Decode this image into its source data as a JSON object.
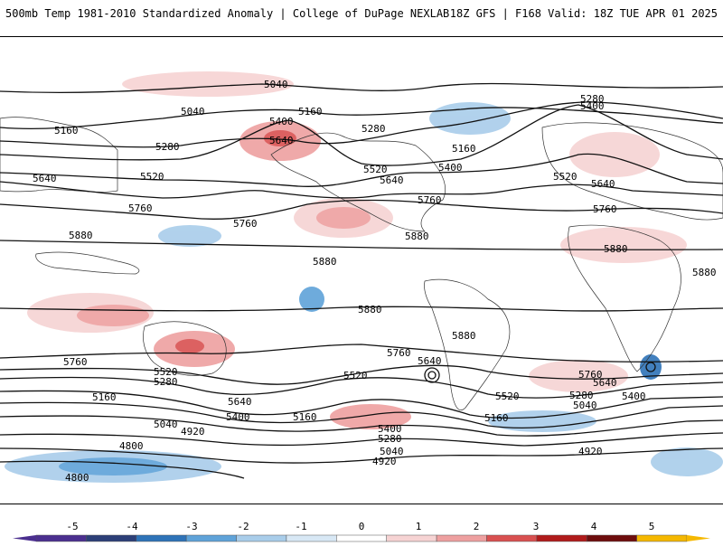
{
  "header": {
    "title_left": "500mb Temp 1981-2010 Standardized Anomaly | College of DuPage NEXLAB",
    "title_right": "18Z GFS | F168 Valid: 18Z TUE APR 01 2025"
  },
  "colorbar": {
    "ticks": [
      "-5",
      "-4",
      "-3",
      "-2",
      "-1",
      "0",
      "1",
      "2",
      "3",
      "4",
      "5"
    ],
    "colors": [
      "#4b2f8f",
      "#2c3f78",
      "#2e73b8",
      "#5fa3d9",
      "#a9cdea",
      "#d8e8f5",
      "#ffffff",
      "#f6d3d3",
      "#eea0a0",
      "#d95050",
      "#b01b1b",
      "#6e0d0d",
      "#f5b800"
    ]
  },
  "map": {
    "contour_labels": [
      {
        "id": "a",
        "text": "5040"
      },
      {
        "id": "b",
        "text": "5040"
      },
      {
        "id": "c",
        "text": "5160"
      },
      {
        "id": "d",
        "text": "5160"
      },
      {
        "id": "e",
        "text": "5400"
      },
      {
        "id": "f",
        "text": "5640"
      },
      {
        "id": "g",
        "text": "5280"
      },
      {
        "id": "h",
        "text": "5280"
      },
      {
        "id": "i",
        "text": "5160"
      },
      {
        "id": "j",
        "text": "5520"
      },
      {
        "id": "k",
        "text": "5400"
      },
      {
        "id": "l",
        "text": "5640"
      },
      {
        "id": "m",
        "text": "5640"
      },
      {
        "id": "n",
        "text": "5520"
      },
      {
        "id": "o",
        "text": "5760"
      },
      {
        "id": "p",
        "text": "5760"
      },
      {
        "id": "q",
        "text": "5760"
      },
      {
        "id": "r",
        "text": "5280"
      },
      {
        "id": "s",
        "text": "5400"
      },
      {
        "id": "t",
        "text": "5520"
      },
      {
        "id": "u",
        "text": "5640"
      },
      {
        "id": "v",
        "text": "5760"
      },
      {
        "id": "w",
        "text": "5880"
      },
      {
        "id": "x",
        "text": "5880"
      },
      {
        "id": "y",
        "text": "5880"
      },
      {
        "id": "z",
        "text": "5880"
      },
      {
        "id": "aa",
        "text": "5880"
      },
      {
        "id": "ab",
        "text": "5880"
      },
      {
        "id": "ac",
        "text": "5880"
      },
      {
        "id": "ad",
        "text": "5760"
      },
      {
        "id": "ae",
        "text": "5520"
      },
      {
        "id": "af",
        "text": "5280"
      },
      {
        "id": "ag",
        "text": "5160"
      },
      {
        "id": "ah",
        "text": "5040"
      },
      {
        "id": "ai",
        "text": "4920"
      },
      {
        "id": "aj",
        "text": "4800"
      },
      {
        "id": "ak",
        "text": "4800"
      },
      {
        "id": "al",
        "text": "5760"
      },
      {
        "id": "am",
        "text": "5640"
      },
      {
        "id": "an",
        "text": "5400"
      },
      {
        "id": "ao",
        "text": "5160"
      },
      {
        "id": "ap",
        "text": "5520"
      },
      {
        "id": "aq",
        "text": "5400"
      },
      {
        "id": "ar",
        "text": "5280"
      },
      {
        "id": "as",
        "text": "5040"
      },
      {
        "id": "at",
        "text": "4920"
      },
      {
        "id": "au",
        "text": "5760"
      },
      {
        "id": "av",
        "text": "5640"
      },
      {
        "id": "aw",
        "text": "5160"
      },
      {
        "id": "ax",
        "text": "5520"
      },
      {
        "id": "ay",
        "text": "5280"
      },
      {
        "id": "az",
        "text": "5400"
      },
      {
        "id": "ba",
        "text": "5040"
      },
      {
        "id": "bb",
        "text": "4920"
      },
      {
        "id": "bc",
        "text": "5640"
      }
    ]
  }
}
